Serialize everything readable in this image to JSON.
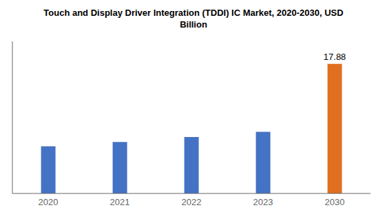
{
  "chart_data": {
    "type": "bar",
    "title": "Touch and Display Driver Integration (TDDI) IC Market, 2020-2030, USD\nBillion",
    "categories": [
      "2020",
      "2021",
      "2022",
      "2023",
      "2030"
    ],
    "values": [
      6.5,
      7.1,
      7.8,
      8.5,
      17.88
    ],
    "colors": [
      "#4472C4",
      "#4472C4",
      "#4472C4",
      "#4472C4",
      "#E07020"
    ],
    "ylim": [
      0,
      21
    ],
    "grid": false,
    "tick_labels": "x",
    "annotations": [
      {
        "x": "2030",
        "text": "17.88"
      }
    ]
  }
}
